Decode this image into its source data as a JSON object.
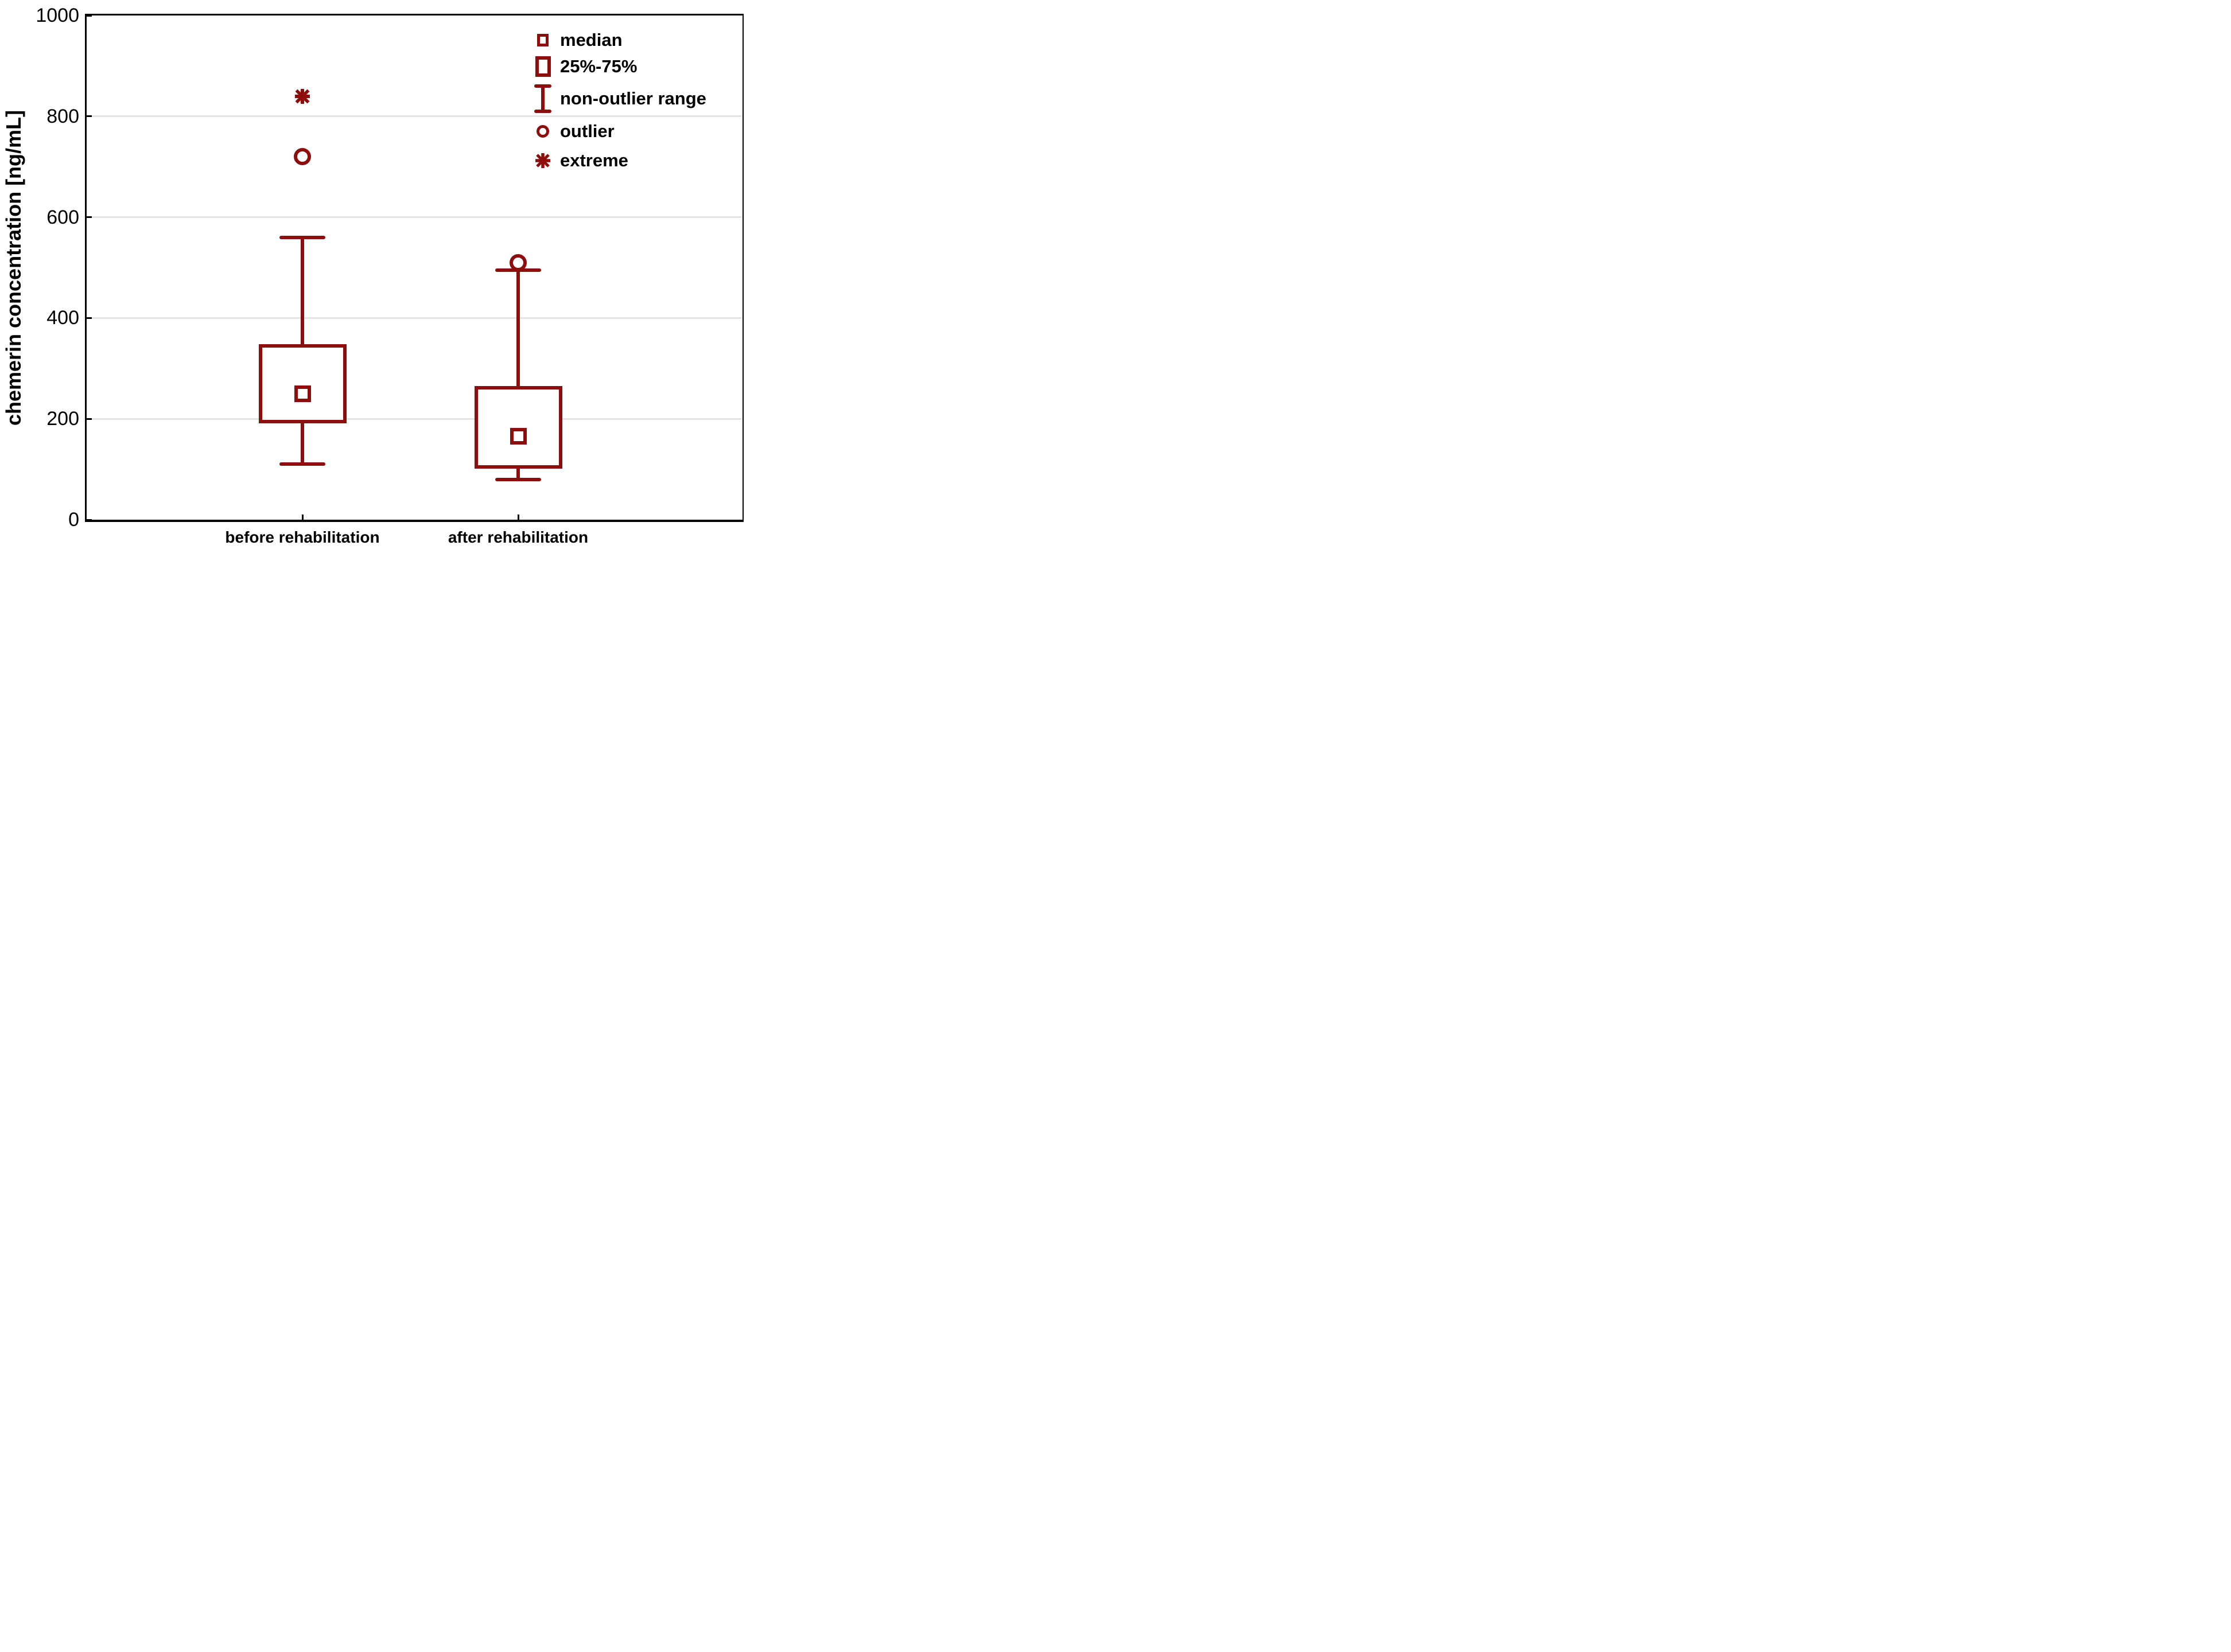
{
  "colors": {
    "accent": "#8e0d0d",
    "gridline": "#e4e4e4",
    "frame": "#000000",
    "text": "#000000",
    "background": "#ffffff"
  },
  "legend": {
    "items": [
      {
        "symbol": "median-square-icon",
        "label": "median"
      },
      {
        "symbol": "iqr-box-icon",
        "label": "25%-75%"
      },
      {
        "symbol": "whisker-ibeam-icon",
        "label": "non-outlier range"
      },
      {
        "symbol": "outlier-circle-icon",
        "label": "outlier"
      },
      {
        "symbol": "extreme-asterisk-icon",
        "label": "extreme"
      }
    ]
  },
  "chart_data": {
    "type": "boxplot",
    "title": "",
    "ylabel": "chemerin concentration [ng/mL]",
    "xlabel": "",
    "ylim": [
      0,
      1000
    ],
    "yticks": [
      0,
      200,
      400,
      600,
      800,
      1000
    ],
    "grid": "horizontal-light-gray",
    "legend_position": "top-right-inside",
    "categories": [
      "before rehabilitation",
      "after rehabilitation"
    ],
    "series": [
      {
        "category": "before rehabilitation",
        "median": 250,
        "q1": 195,
        "q3": 345,
        "whisker_low": 110,
        "whisker_high": 560,
        "outliers": [
          720
        ],
        "extremes": [
          840
        ]
      },
      {
        "category": "after rehabilitation",
        "median": 165,
        "q1": 105,
        "q3": 262,
        "whisker_low": 80,
        "whisker_high": 495,
        "outliers": [
          510
        ],
        "extremes": []
      }
    ]
  }
}
